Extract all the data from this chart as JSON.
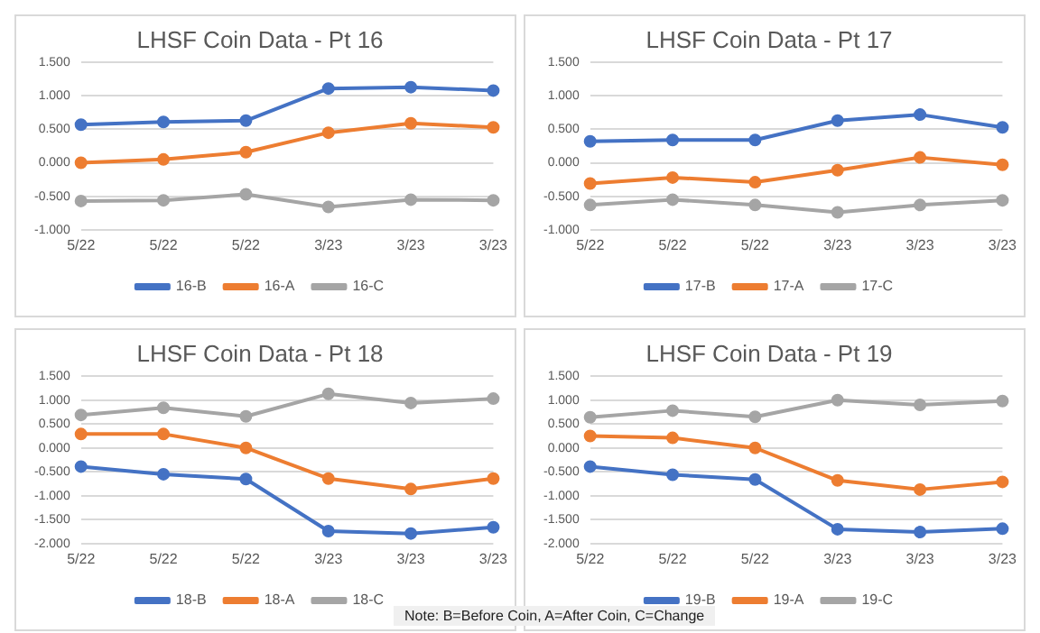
{
  "chart_data": [
    {
      "type": "line",
      "title": "LHSF Coin Data - Pt 16",
      "categories": [
        "5/22",
        "5/22",
        "5/22",
        "3/23",
        "3/23",
        "3/23"
      ],
      "series": [
        {
          "name": "16-B",
          "color": "#4472c4",
          "values": [
            0.57,
            0.61,
            0.63,
            1.11,
            1.13,
            1.08
          ]
        },
        {
          "name": "16-A",
          "color": "#ed7d31",
          "values": [
            0.0,
            0.05,
            0.16,
            0.45,
            0.59,
            0.53
          ]
        },
        {
          "name": "16-C",
          "color": "#a5a5a5",
          "values": [
            -0.57,
            -0.56,
            -0.47,
            -0.66,
            -0.55,
            -0.56
          ]
        }
      ],
      "ylim": [
        -1,
        1.5
      ],
      "yticks": [
        {
          "value": -1,
          "label": "-1.000"
        },
        {
          "value": -0.5,
          "label": "-0.500"
        },
        {
          "value": 0,
          "label": "0.000"
        },
        {
          "value": 0.5,
          "label": "0.500"
        },
        {
          "value": 1,
          "label": "1.000"
        },
        {
          "value": 1.5,
          "label": "1.500"
        }
      ],
      "grid": "y",
      "legend": "bottom",
      "marker": "circle",
      "line_style": "solid"
    },
    {
      "type": "line",
      "title": "LHSF Coin Data - Pt 17",
      "categories": [
        "5/22",
        "5/22",
        "5/22",
        "3/23",
        "3/23",
        "3/23"
      ],
      "series": [
        {
          "name": "17-B",
          "color": "#4472c4",
          "values": [
            0.32,
            0.34,
            0.34,
            0.63,
            0.72,
            0.53
          ]
        },
        {
          "name": "17-A",
          "color": "#ed7d31",
          "values": [
            -0.31,
            -0.22,
            -0.29,
            -0.11,
            0.08,
            -0.03
          ]
        },
        {
          "name": "17-C",
          "color": "#a5a5a5",
          "values": [
            -0.63,
            -0.55,
            -0.63,
            -0.74,
            -0.63,
            -0.56
          ]
        }
      ],
      "ylim": [
        -1,
        1.5
      ],
      "yticks": [
        {
          "value": -1,
          "label": "-1.000"
        },
        {
          "value": -0.5,
          "label": "-0.500"
        },
        {
          "value": 0,
          "label": "0.000"
        },
        {
          "value": 0.5,
          "label": "0.500"
        },
        {
          "value": 1,
          "label": "1.000"
        },
        {
          "value": 1.5,
          "label": "1.500"
        }
      ],
      "grid": "y",
      "legend": "bottom",
      "marker": "circle",
      "line_style": "solid"
    },
    {
      "type": "line",
      "title": "LHSF Coin Data - Pt 18",
      "categories": [
        "5/22",
        "5/22",
        "5/22",
        "3/23",
        "3/23",
        "3/23"
      ],
      "series": [
        {
          "name": "18-B",
          "color": "#4472c4",
          "values": [
            -0.39,
            -0.55,
            -0.65,
            -1.74,
            -1.79,
            -1.66
          ]
        },
        {
          "name": "18-A",
          "color": "#ed7d31",
          "values": [
            0.29,
            0.29,
            0.0,
            -0.64,
            -0.86,
            -0.64
          ]
        },
        {
          "name": "18-C",
          "color": "#a5a5a5",
          "values": [
            0.69,
            0.84,
            0.66,
            1.13,
            0.94,
            1.03
          ]
        }
      ],
      "ylim": [
        -2,
        1.5
      ],
      "yticks": [
        {
          "value": -2,
          "label": "-2.000"
        },
        {
          "value": -1.5,
          "label": "-1.500"
        },
        {
          "value": -1,
          "label": "-1.000"
        },
        {
          "value": -0.5,
          "label": "-0.500"
        },
        {
          "value": 0,
          "label": "0.000"
        },
        {
          "value": 0.5,
          "label": "0.500"
        },
        {
          "value": 1,
          "label": "1.000"
        },
        {
          "value": 1.5,
          "label": "1.500"
        }
      ],
      "grid": "y",
      "legend": "bottom",
      "marker": "circle",
      "line_style": "solid",
      "annotations": [
        "Note: B=Before Coin, A=After Coin, C=Change"
      ]
    },
    {
      "type": "line",
      "title": "LHSF Coin Data - Pt 19",
      "categories": [
        "5/22",
        "5/22",
        "5/22",
        "3/23",
        "3/23",
        "3/23"
      ],
      "series": [
        {
          "name": "19-B",
          "color": "#4472c4",
          "values": [
            -0.39,
            -0.56,
            -0.66,
            -1.7,
            -1.76,
            -1.69
          ]
        },
        {
          "name": "19-A",
          "color": "#ed7d31",
          "values": [
            0.25,
            0.21,
            0.0,
            -0.68,
            -0.87,
            -0.71
          ]
        },
        {
          "name": "19-C",
          "color": "#a5a5a5",
          "values": [
            0.64,
            0.78,
            0.65,
            1.0,
            0.9,
            0.98
          ]
        }
      ],
      "ylim": [
        -2,
        1.5
      ],
      "yticks": [
        {
          "value": -2,
          "label": "-2.000"
        },
        {
          "value": -1.5,
          "label": "-1.500"
        },
        {
          "value": -1,
          "label": "-1.000"
        },
        {
          "value": -0.5,
          "label": "-0.500"
        },
        {
          "value": 0,
          "label": "0.000"
        },
        {
          "value": 0.5,
          "label": "0.500"
        },
        {
          "value": 1,
          "label": "1.000"
        },
        {
          "value": 1.5,
          "label": "1.500"
        }
      ],
      "grid": "y",
      "legend": "bottom",
      "marker": "circle",
      "line_style": "solid"
    }
  ]
}
